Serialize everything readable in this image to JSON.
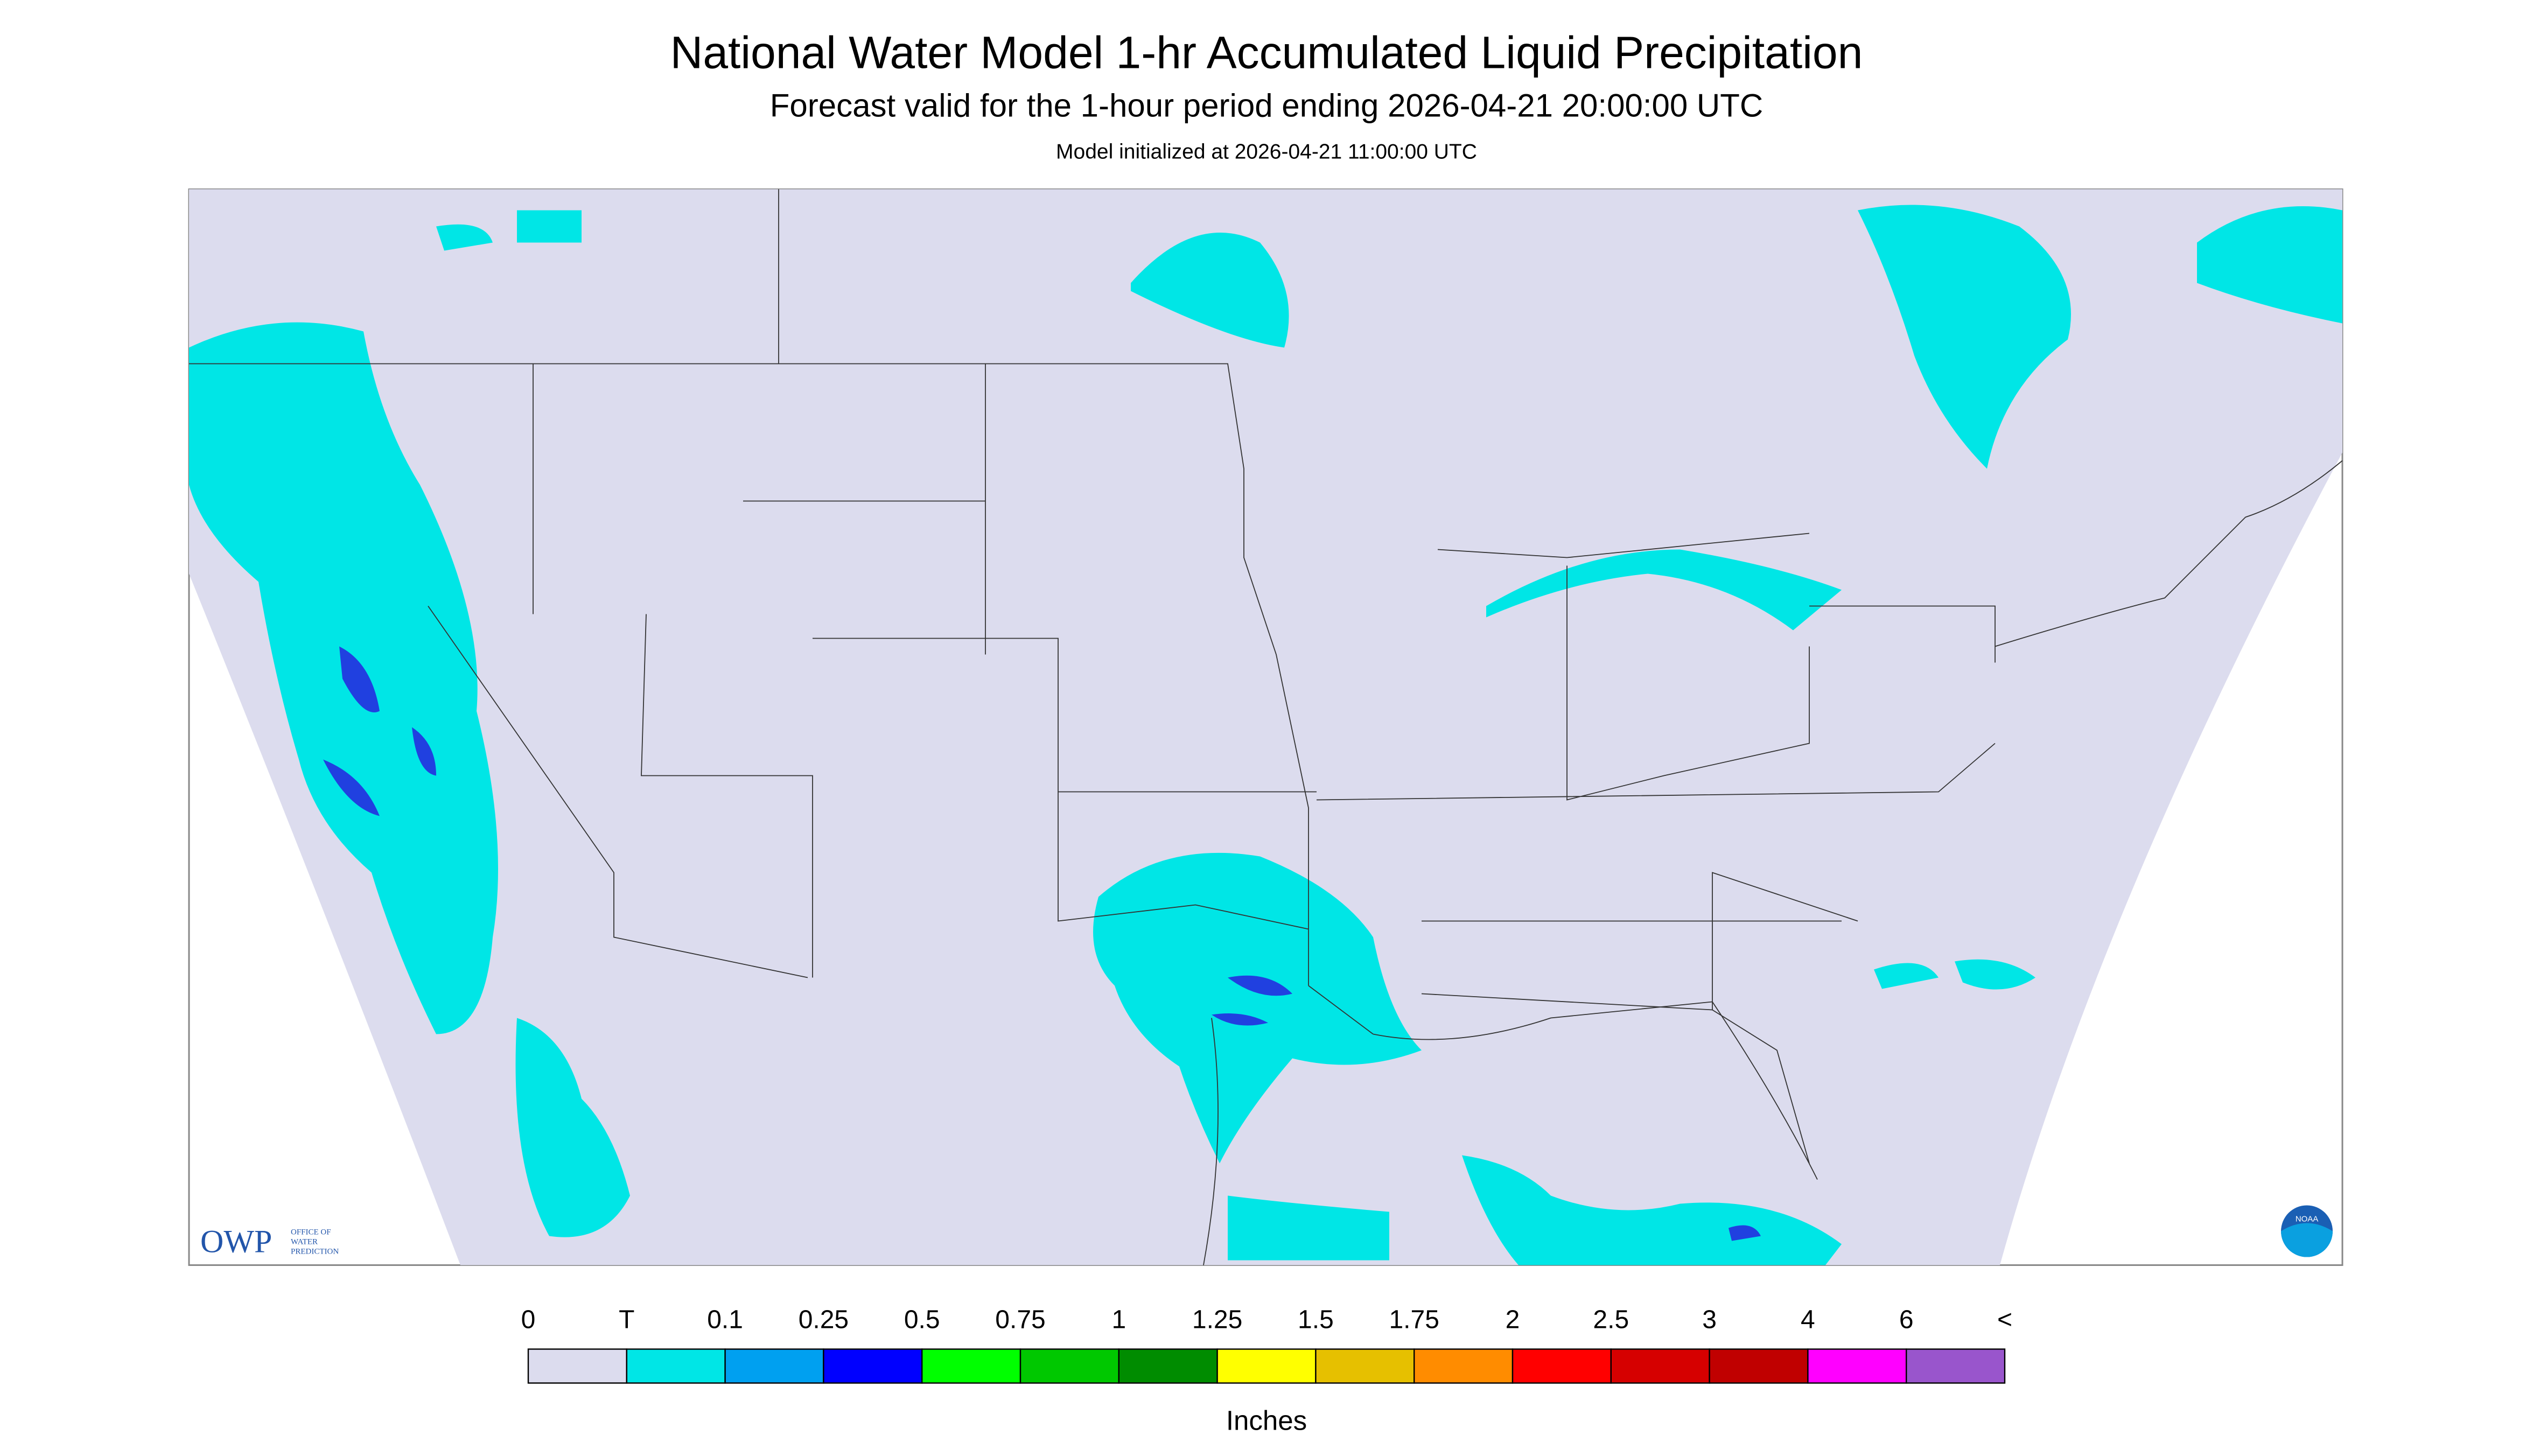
{
  "header": {
    "title": "National Water Model 1-hr Accumulated Liquid Precipitation",
    "subtitle": "Forecast valid for the 1-hour period ending 2026-04-21 20:00:00 UTC",
    "init": "Model initialized at 2026-04-21 11:00:00 UTC"
  },
  "logos": {
    "owp": "OWP",
    "owp_text": [
      "OFFICE OF",
      "WATER",
      "PREDICTION"
    ],
    "noaa": "NOAA"
  },
  "colorbar": {
    "labels": [
      "0",
      "T",
      "0.1",
      "0.25",
      "0.5",
      "0.75",
      "1",
      "1.25",
      "1.5",
      "1.75",
      "2",
      "2.5",
      "3",
      "4",
      "6",
      "<"
    ],
    "colors": [
      "#dcdcee",
      "#00e6e6",
      "#00a0f0",
      "#0000ff",
      "#00ff00",
      "#00c800",
      "#008c00",
      "#ffff00",
      "#e6c000",
      "#ff8c00",
      "#ff0000",
      "#d60000",
      "#c00000",
      "#ff00ff",
      "#9955cc"
    ],
    "unit": "Inches"
  }
}
